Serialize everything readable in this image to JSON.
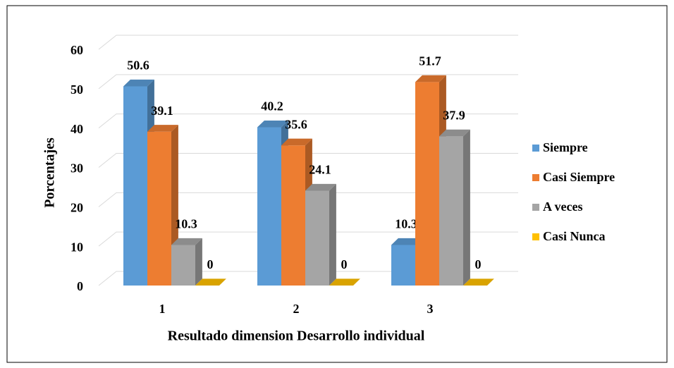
{
  "chart_data": {
    "type": "bar3d",
    "x_label": "Resultado dimension Desarrollo individual",
    "y_label": "Porcentajes",
    "categories": [
      "1",
      "2",
      "3"
    ],
    "series": [
      {
        "name": "Siempre",
        "color": "#5b9bd5",
        "values": [
          50.6,
          40.2,
          10.3
        ]
      },
      {
        "name": "Casi Siempre",
        "color": "#ed7d31",
        "values": [
          39.1,
          35.6,
          51.7
        ]
      },
      {
        "name": "A veces",
        "color": "#a5a5a5",
        "values": [
          10.3,
          24.1,
          37.9
        ]
      },
      {
        "name": "Casi Nunca",
        "color": "#ffc000",
        "values": [
          0,
          0,
          0
        ]
      }
    ],
    "ylim": [
      0,
      60
    ],
    "yticks": [
      0,
      10,
      20,
      30,
      40,
      50,
      60
    ],
    "grid": true,
    "legend": "right"
  }
}
